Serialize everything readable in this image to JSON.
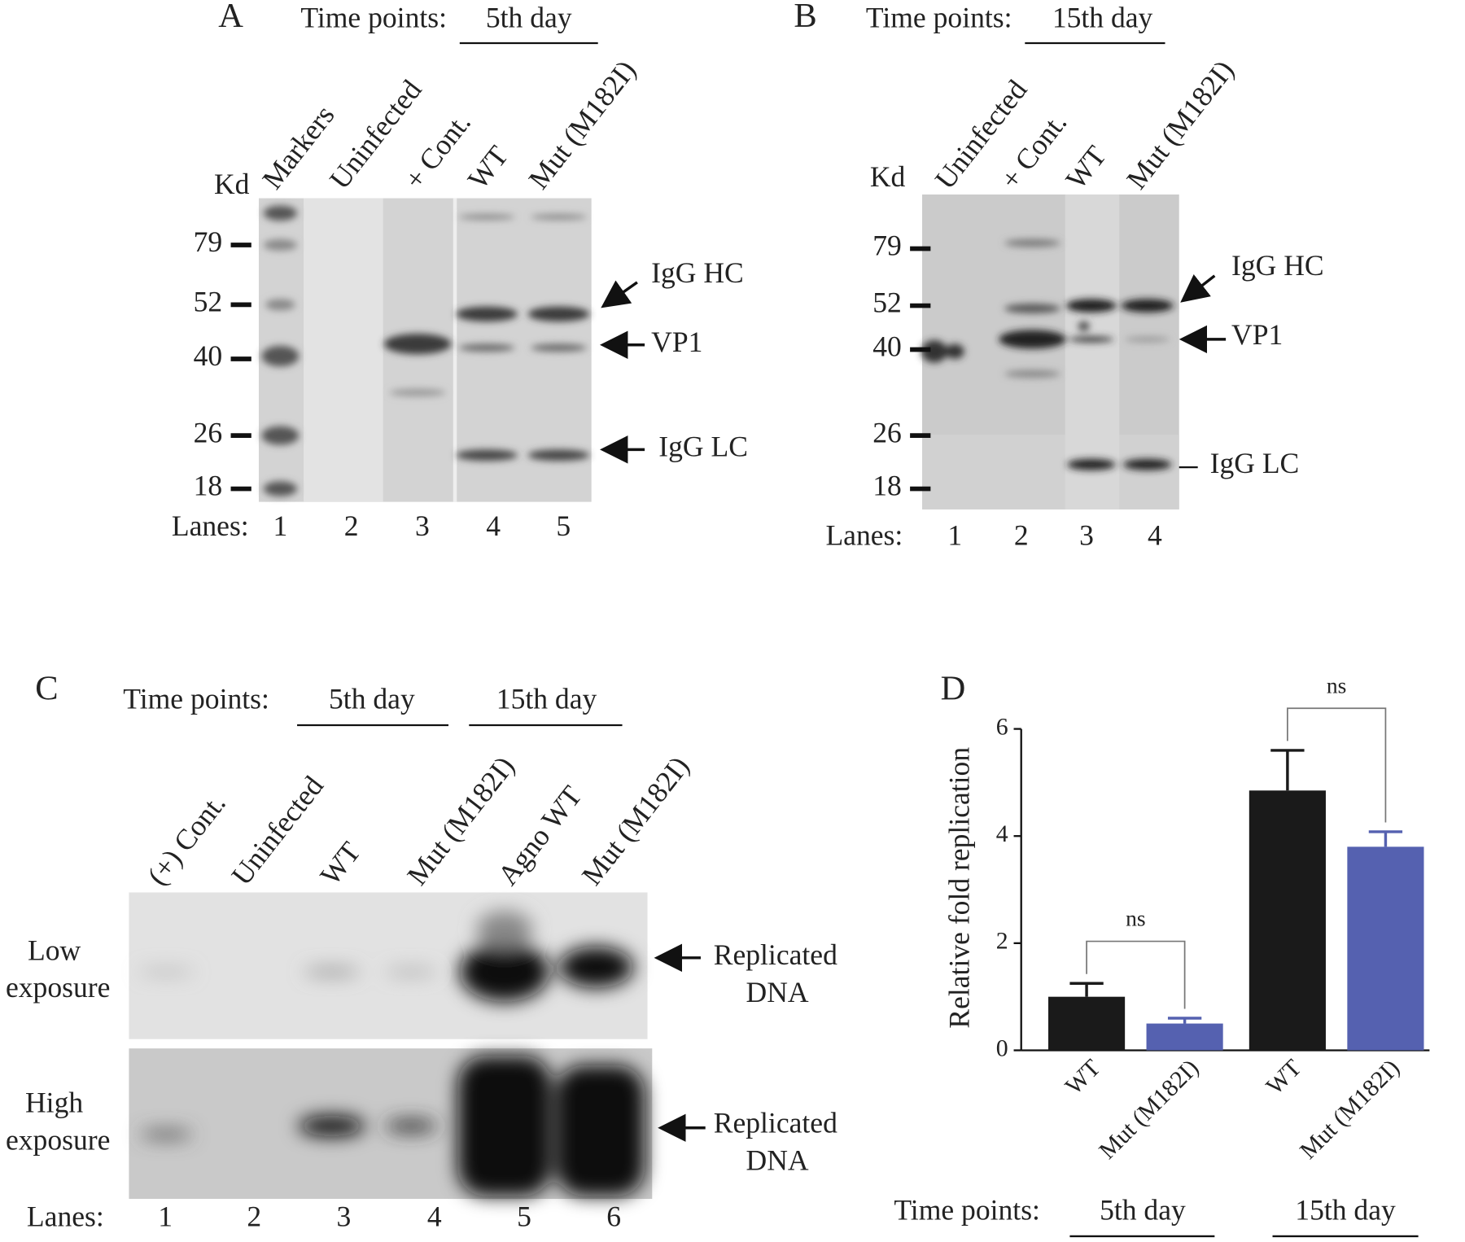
{
  "panel_a": {
    "label": "A",
    "time_points": "Time points:",
    "day": "5th day",
    "lane_names": [
      "Markers",
      "Uninfected",
      "+ Cont.",
      "WT",
      "Mut (M182I)"
    ],
    "kd": "Kd",
    "markers": [
      79,
      52,
      40,
      26,
      18
    ],
    "annotations": [
      "IgG HC",
      "VP1",
      "IgG LC"
    ],
    "lanes_label": "Lanes:",
    "lanes": [
      1,
      2,
      3,
      4,
      5
    ]
  },
  "panel_b": {
    "label": "B",
    "time_points": "Time points:",
    "day": "15th day",
    "lane_names": [
      "Uninfected",
      "+ Cont.",
      "WT",
      "Mut (M182I)"
    ],
    "kd": "Kd",
    "markers": [
      79,
      52,
      40,
      26,
      18
    ],
    "annotations": [
      "IgG HC",
      "VP1",
      "IgG LC"
    ],
    "lanes_label": "Lanes:",
    "lanes": [
      1,
      2,
      3,
      4
    ]
  },
  "panel_c": {
    "label": "C",
    "time_points": "Time points:",
    "days": [
      "5th day",
      "15th day"
    ],
    "lane_names": [
      "(+) Cont.",
      "Uninfected",
      "WT",
      "Mut (M182I)",
      "Agno WT",
      "Mut (M182I)"
    ],
    "exposures": [
      [
        "Low",
        "exposure"
      ],
      [
        "High",
        "exposure"
      ]
    ],
    "annotations": [
      [
        "Replicated",
        "DNA"
      ],
      [
        "Replicated",
        "DNA"
      ]
    ],
    "lanes_label": "Lanes:",
    "lanes": [
      1,
      2,
      3,
      4,
      5,
      6
    ]
  },
  "chart_data": {
    "type": "bar",
    "label": "D",
    "ylabel": "Relative fold replication",
    "categories": [
      "WT",
      "Mut (M182I)",
      "WT",
      "Mut (M182I)"
    ],
    "values": [
      1.0,
      0.5,
      4.85,
      3.8
    ],
    "errors": [
      0.25,
      0.1,
      0.75,
      0.28
    ],
    "colors": [
      "#1a1a1a",
      "#5561b0",
      "#1a1a1a",
      "#5561b0"
    ],
    "ylim": [
      0,
      6
    ],
    "yticks": [
      0,
      2,
      4,
      6
    ],
    "annotations": [
      "ns",
      "ns"
    ],
    "time_points": "Time points:",
    "groups": [
      "5th day",
      "15th day"
    ]
  }
}
